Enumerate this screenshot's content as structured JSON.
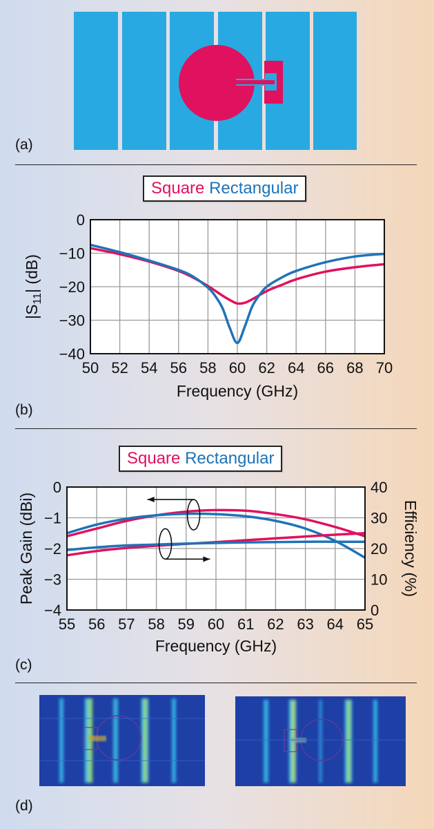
{
  "labels": {
    "a": "(a)",
    "b": "(b)",
    "c": "(c)",
    "d": "(d)"
  },
  "colors": {
    "square": "#e0115f",
    "rectangular": "#1e73b7",
    "patch": "#29a9e1",
    "feed": "#e0115f"
  },
  "chart_data": [
    {
      "type": "line",
      "panel": "b",
      "legend": [
        "Square",
        "Rectangular"
      ],
      "xlabel": "Frequency (GHz)",
      "ylabel_pre": "|S",
      "ylabel_sub": "11",
      "ylabel_post": "| (dB)",
      "xlim": [
        50,
        70
      ],
      "ylim": [
        -40,
        0
      ],
      "xticks": [
        50,
        52,
        54,
        56,
        58,
        60,
        62,
        64,
        66,
        68,
        70
      ],
      "yticks": [
        0,
        -10,
        -20,
        -30,
        -40
      ],
      "ytick_labels": [
        "0",
        "−10",
        "−20",
        "−30",
        "−40"
      ],
      "grid": true,
      "series": [
        {
          "name": "Square",
          "color": "#e0115f",
          "x": [
            50,
            52,
            54,
            56,
            57,
            58,
            59,
            59.5,
            60,
            60.5,
            61,
            62,
            63,
            64,
            66,
            68,
            70
          ],
          "y": [
            -8.5,
            -10.3,
            -12.5,
            -15.3,
            -17.3,
            -19.8,
            -22.7,
            -24.0,
            -25.0,
            -24.8,
            -23.8,
            -21.3,
            -19.5,
            -17.8,
            -15.5,
            -14.2,
            -13.3
          ]
        },
        {
          "name": "Rectangular",
          "color": "#1e73b7",
          "x": [
            50,
            52,
            54,
            56,
            57,
            58,
            58.5,
            59,
            59.5,
            60,
            60.5,
            61,
            61.5,
            62,
            63,
            64,
            66,
            68,
            70
          ],
          "y": [
            -7.5,
            -9.7,
            -12.2,
            -15.0,
            -17.0,
            -20.3,
            -22.8,
            -26.5,
            -32.5,
            -36.8,
            -32.0,
            -26.0,
            -22.5,
            -20.0,
            -17.3,
            -15.3,
            -12.7,
            -11.0,
            -10.2
          ]
        }
      ]
    },
    {
      "type": "line",
      "panel": "c",
      "legend": [
        "Square",
        "Rectangular"
      ],
      "xlabel": "Frequency (GHz)",
      "ylabel": "Peak Gain (dBi)",
      "y2label": "Efficiency (%)",
      "xlim": [
        55,
        65
      ],
      "ylim": [
        -4,
        0
      ],
      "y2lim": [
        0,
        40
      ],
      "xticks": [
        55,
        56,
        57,
        58,
        59,
        60,
        61,
        62,
        63,
        64,
        65
      ],
      "yticks": [
        0,
        -1,
        -2,
        -3,
        -4
      ],
      "ytick_labels": [
        "0",
        "−1",
        "−2",
        "−3",
        "−4"
      ],
      "y2ticks": [
        40,
        30,
        20,
        10,
        0
      ],
      "grid": true,
      "series": [
        {
          "name": "Square",
          "quantity": "gain",
          "color": "#e0115f",
          "x": [
            55,
            56,
            57,
            58,
            59,
            60,
            61,
            62,
            63,
            64,
            65
          ],
          "y": [
            -1.6,
            -1.35,
            -1.1,
            -0.92,
            -0.8,
            -0.75,
            -0.77,
            -0.88,
            -1.05,
            -1.3,
            -1.6
          ]
        },
        {
          "name": "Rectangular",
          "quantity": "gain",
          "color": "#1e73b7",
          "x": [
            55,
            56,
            57,
            58,
            59,
            60,
            61,
            62,
            63,
            64,
            65
          ],
          "y": [
            -1.5,
            -1.22,
            -1.03,
            -0.92,
            -0.87,
            -0.88,
            -0.95,
            -1.1,
            -1.35,
            -1.75,
            -2.3
          ]
        },
        {
          "name": "Square",
          "quantity": "efficiency",
          "color": "#e0115f",
          "x": [
            55,
            56,
            57,
            58,
            59,
            60,
            61,
            62,
            63,
            64,
            65
          ],
          "y": [
            17.8,
            19.2,
            20.2,
            20.9,
            21.5,
            22.1,
            22.7,
            23.3,
            23.9,
            24.5,
            25.0
          ]
        },
        {
          "name": "Rectangular",
          "quantity": "efficiency",
          "color": "#1e73b7",
          "x": [
            55,
            56,
            57,
            58,
            59,
            60,
            61,
            62,
            63,
            64,
            65
          ],
          "y": [
            19.5,
            20.4,
            21.0,
            21.3,
            21.6,
            21.8,
            22.0,
            22.1,
            22.2,
            22.2,
            22.2
          ]
        }
      ]
    }
  ]
}
